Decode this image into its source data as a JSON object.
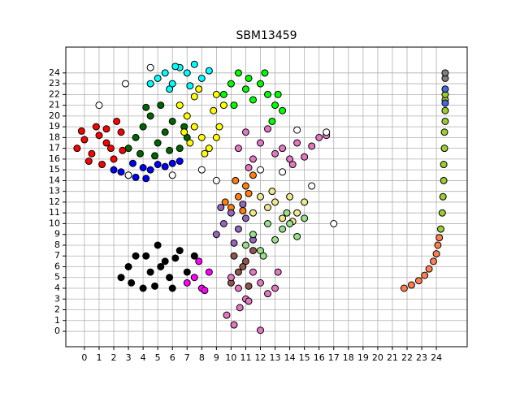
{
  "chart_data": {
    "type": "scatter",
    "title": "SBM13459",
    "xlim": [
      -1.27,
      26.1
    ],
    "ylim": [
      -1.43,
      26.4
    ],
    "xticks": [
      0,
      1,
      2,
      3,
      4,
      5,
      6,
      7,
      8,
      9,
      10,
      11,
      12,
      13,
      14,
      15,
      16,
      17,
      18,
      19,
      20,
      21,
      22,
      23,
      24
    ],
    "yticks": [
      0,
      1,
      2,
      3,
      4,
      5,
      6,
      7,
      8,
      9,
      10,
      11,
      12,
      13,
      14,
      15,
      16,
      17,
      18,
      19,
      20,
      21,
      22,
      23,
      24
    ],
    "grid": true,
    "series": [
      {
        "color": "#ff0000",
        "x": [
          -0.5,
          0,
          0.5,
          1,
          1.5,
          2,
          2.5,
          0.3,
          1.2,
          2.2,
          0.8,
          1.8,
          2.6,
          -0.2,
          1.5
        ],
        "y": [
          17,
          17.8,
          16.5,
          18.2,
          17.5,
          16,
          18.5,
          15.8,
          15.5,
          19.5,
          19,
          17,
          16.8,
          18.6,
          18.8
        ]
      },
      {
        "color": "#0000ff",
        "x": [
          2,
          2.5,
          3,
          3.5,
          4,
          4.5,
          5,
          5.5,
          6,
          6.5,
          3.3,
          4.2
        ],
        "y": [
          15,
          14.8,
          14.5,
          14.3,
          15.2,
          15,
          15.5,
          15.3,
          15.6,
          15.8,
          15.6,
          14.2
        ]
      },
      {
        "color": "#006400",
        "x": [
          3,
          3.5,
          4,
          4.5,
          5,
          5.5,
          6,
          6.5,
          7,
          3.8,
          4.8,
          5.8,
          6.8,
          4.2,
          5.2
        ],
        "y": [
          17,
          18,
          19,
          20,
          17.5,
          18.5,
          19.5,
          17,
          18,
          16.5,
          16.3,
          16.8,
          19,
          20.8,
          21
        ]
      },
      {
        "color": "#ffff00",
        "x": [
          6.5,
          7,
          7.5,
          8,
          8.5,
          9,
          9.5,
          7.2,
          8.2,
          9.2,
          6.8,
          7.8,
          8.8,
          7.5,
          9
        ],
        "y": [
          21,
          20,
          19,
          18,
          17,
          22,
          21,
          17.5,
          16.5,
          19,
          18.5,
          22.5,
          20.5,
          21.8,
          18
        ]
      },
      {
        "color": "#00ffff",
        "x": [
          4.5,
          5,
          5.5,
          6,
          6.5,
          7,
          7.5,
          8,
          8.5,
          5.8,
          7.2,
          6.2
        ],
        "y": [
          23,
          23.5,
          24,
          23,
          24.5,
          24,
          24.8,
          23.5,
          24.2,
          22.5,
          22.8,
          24.6
        ]
      },
      {
        "color": "#00ff00",
        "x": [
          9.5,
          10,
          10.5,
          11,
          11.5,
          12,
          12.5,
          13,
          13.5,
          10.2,
          11.2,
          12.3,
          13.2,
          12.8
        ],
        "y": [
          22,
          23,
          24,
          22.5,
          21.5,
          23,
          22,
          21,
          20.5,
          21,
          23.5,
          24,
          22,
          19.5
        ]
      },
      {
        "color": "#e377c2",
        "x": [
          10.5,
          11,
          11.5,
          12,
          12.5,
          11.2,
          13,
          13.5,
          14,
          14.5,
          15,
          15.5,
          16,
          14.2,
          16.5
        ],
        "y": [
          17,
          18.5,
          16,
          17.5,
          18.8,
          15.2,
          16.5,
          17,
          16,
          17.5,
          16.2,
          17.2,
          18,
          15.5,
          18.2
        ]
      },
      {
        "color": "#ff7f0e",
        "x": [
          10,
          10.5,
          11,
          11.5,
          10.3,
          10.8,
          11.2,
          9.6
        ],
        "y": [
          11.5,
          12.5,
          13.5,
          14.5,
          14,
          11.2,
          12.8,
          12
        ]
      },
      {
        "color": "#9467bd",
        "x": [
          9,
          9.5,
          10,
          10.5,
          11,
          11.5,
          9.3,
          10.2,
          10.8
        ],
        "y": [
          9,
          10,
          11,
          9.5,
          10.5,
          8.5,
          11.5,
          8.2,
          11.8
        ]
      },
      {
        "color": "#f0e68c",
        "x": [
          11.5,
          12,
          12.5,
          13,
          13.5,
          14,
          14.5,
          15,
          12.8,
          14.2
        ],
        "y": [
          11,
          12.5,
          11.5,
          12,
          10.5,
          12.5,
          11,
          12,
          13,
          10.2
        ]
      },
      {
        "color": "#98df8a",
        "x": [
          11,
          11.5,
          12,
          12.5,
          13,
          13.5,
          14,
          14.5,
          15,
          12.2,
          13.8
        ],
        "y": [
          8,
          9,
          7.5,
          10,
          8.5,
          9.5,
          10,
          8.8,
          10.5,
          7,
          11
        ]
      },
      {
        "color": "#8c564b",
        "x": [
          10,
          10.5,
          11,
          11.5,
          10.2,
          11.2,
          10.8
        ],
        "y": [
          4.5,
          5.5,
          6.5,
          7.5,
          7,
          4.2,
          6
        ]
      },
      {
        "color": "#e377c2",
        "x": [
          10,
          10.5,
          11,
          11.5,
          12,
          12.5,
          13,
          13.2,
          9.7,
          10.2,
          10.6,
          12,
          11.2
        ],
        "y": [
          5,
          4,
          3,
          5.5,
          4.5,
          3.5,
          4,
          5.5,
          1.5,
          0.6,
          2.2,
          0.1,
          2.8
        ]
      },
      {
        "color": "#000000",
        "x": [
          2.5,
          3,
          3.5,
          4,
          4.5,
          5,
          5.5,
          6,
          6.5,
          7,
          3.2,
          4.2,
          5.2,
          6.2,
          7.5,
          4.8,
          5.8
        ],
        "y": [
          5,
          6,
          7,
          4,
          5.5,
          8,
          6.5,
          4,
          7.5,
          5.5,
          4.5,
          7,
          6,
          6.8,
          7,
          4.2,
          5
        ]
      },
      {
        "color": "#ff00ff",
        "x": [
          7,
          7.5,
          8,
          8.5,
          7.8,
          8.2
        ],
        "y": [
          4.5,
          5,
          4,
          5.5,
          6.5,
          3.8
        ]
      },
      {
        "color": "#ffffff",
        "x": [
          1,
          2.8,
          3,
          4.5,
          8,
          9,
          14.5,
          17,
          15.5,
          13.5,
          16.5,
          6,
          12
        ],
        "y": [
          21,
          23,
          14.5,
          24.5,
          15,
          14,
          18.7,
          10,
          13.5,
          14.8,
          18.5,
          14.5,
          15
        ]
      },
      {
        "color": "#ff7f50",
        "x": [
          21.8,
          22.3,
          22.8,
          23.2,
          23.5,
          23.8,
          24,
          24.1,
          24.2
        ],
        "y": [
          4,
          4.3,
          4.7,
          5.2,
          5.8,
          6.5,
          7.2,
          8,
          8.7
        ]
      },
      {
        "color": "#9acd32",
        "x": [
          24.3,
          24.4,
          24.45,
          24.5,
          24.5,
          24.55,
          24.55,
          24.6,
          24.6,
          24.6,
          24.6
        ],
        "y": [
          9.5,
          11,
          12.5,
          14,
          15.5,
          17,
          18.5,
          19.5,
          20.5,
          21.5,
          22
        ]
      },
      {
        "color": "#4169e1",
        "x": [
          24.6,
          24.6
        ],
        "y": [
          22.5,
          21.2
        ]
      },
      {
        "color": "#808080",
        "x": [
          24.6,
          24.6
        ],
        "y": [
          23.5,
          24
        ]
      }
    ]
  }
}
